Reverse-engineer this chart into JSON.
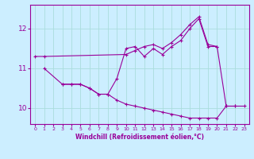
{
  "xlabel": "Windchill (Refroidissement éolien,°C)",
  "color": "#990099",
  "bg_color": "#cceeff",
  "grid_color": "#aadddd",
  "ylim": [
    9.6,
    12.6
  ],
  "yticks": [
    10,
    11,
    12
  ],
  "xlim": [
    -0.5,
    23.5
  ],
  "line1_x": [
    0,
    1,
    10,
    11,
    12,
    13,
    14,
    15,
    16,
    17,
    18,
    19,
    20
  ],
  "line1_y": [
    11.3,
    11.3,
    11.35,
    11.45,
    11.55,
    11.6,
    11.5,
    11.65,
    11.85,
    12.1,
    12.3,
    11.6,
    11.55
  ],
  "line2_x": [
    1,
    3,
    4,
    5,
    6,
    7,
    8,
    9,
    10,
    11,
    12,
    13,
    14,
    15,
    16,
    17,
    18,
    19,
    20,
    21,
    22
  ],
  "line2_y": [
    11.0,
    10.6,
    10.6,
    10.6,
    10.5,
    10.35,
    10.35,
    10.75,
    11.5,
    11.55,
    11.3,
    11.5,
    11.35,
    11.55,
    11.7,
    12.0,
    12.25,
    11.55,
    11.55,
    10.05,
    10.05
  ],
  "line3_x": [
    3,
    4,
    5,
    6,
    7,
    8,
    9,
    10,
    11,
    12,
    13,
    14,
    15,
    16,
    17,
    18,
    19,
    20,
    21,
    22,
    23
  ],
  "line3_y": [
    10.6,
    10.6,
    10.6,
    10.5,
    10.35,
    10.35,
    10.2,
    10.1,
    10.05,
    10.0,
    9.95,
    9.9,
    9.85,
    9.8,
    9.75,
    9.75,
    9.75,
    9.75,
    10.05,
    10.05,
    10.05
  ]
}
